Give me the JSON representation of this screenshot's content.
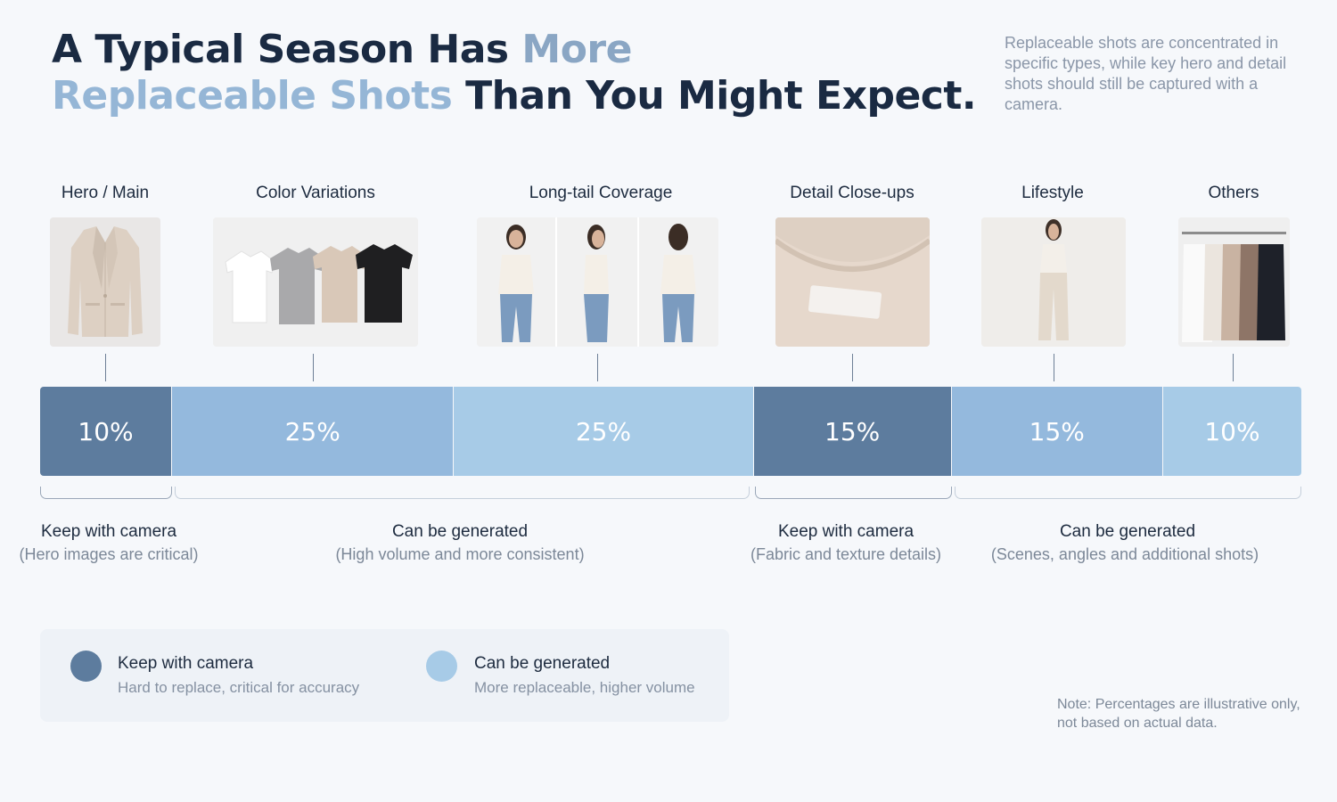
{
  "title": {
    "line1_dark": "A Typical Season Has ",
    "line1_accent": "More",
    "line2_accent": "Replaceable Shots",
    "line2_dark": " Than You Might Expect."
  },
  "intro": "Replaceable shots are concentrated in specific types, while key hero and detail shots should still be captured with a camera.",
  "chart_data": {
    "type": "bar",
    "orientation": "stacked-horizontal-100",
    "unit": "%",
    "categories": [
      "Hero / Main",
      "Color Variations",
      "Long-tail Coverage",
      "Detail Close-ups",
      "Lifestyle",
      "Others"
    ],
    "values": [
      10,
      25,
      25,
      15,
      15,
      10
    ],
    "value_labels": [
      "10%",
      "25%",
      "25%",
      "15%",
      "15%",
      "10%"
    ],
    "segment_group": [
      "camera",
      "generated",
      "generated",
      "camera",
      "generated",
      "generated"
    ],
    "colors": {
      "camera": "#5d7c9e",
      "generated_a": "#94b9dd",
      "generated_b": "#a7cbe7"
    },
    "segment_colors": [
      "#5d7c9e",
      "#94b9dd",
      "#a7cbe7",
      "#5d7c9e",
      "#94b9dd",
      "#a7cbe7"
    ]
  },
  "groups": [
    {
      "title": "Keep with camera",
      "subtitle": "(Hero images are critical)"
    },
    {
      "title": "Can be generated",
      "subtitle": "(High volume and more consistent)"
    },
    {
      "title": "Keep with camera",
      "subtitle": "(Fabric and texture details)"
    },
    {
      "title": "Can be generated",
      "subtitle": "(Scenes, angles and additional shots)"
    }
  ],
  "legend": {
    "camera": {
      "title": "Keep with camera",
      "subtitle": "Hard to replace, critical for accuracy",
      "color": "#5d7c9e"
    },
    "generated": {
      "title": "Can be generated",
      "subtitle": "More replaceable, higher volume",
      "color": "#a7cbe7"
    }
  },
  "note": "Note: Percentages are illustrative only, not based on actual data.",
  "images": [
    {
      "icon": "blazer-photo-icon"
    },
    {
      "icon": "tshirts-color-photo-icon"
    },
    {
      "icon": "model-angles-photo-icon"
    },
    {
      "icon": "fabric-closeup-photo-icon"
    },
    {
      "icon": "model-lifestyle-photo-icon"
    },
    {
      "icon": "clothing-rack-photo-icon"
    }
  ]
}
